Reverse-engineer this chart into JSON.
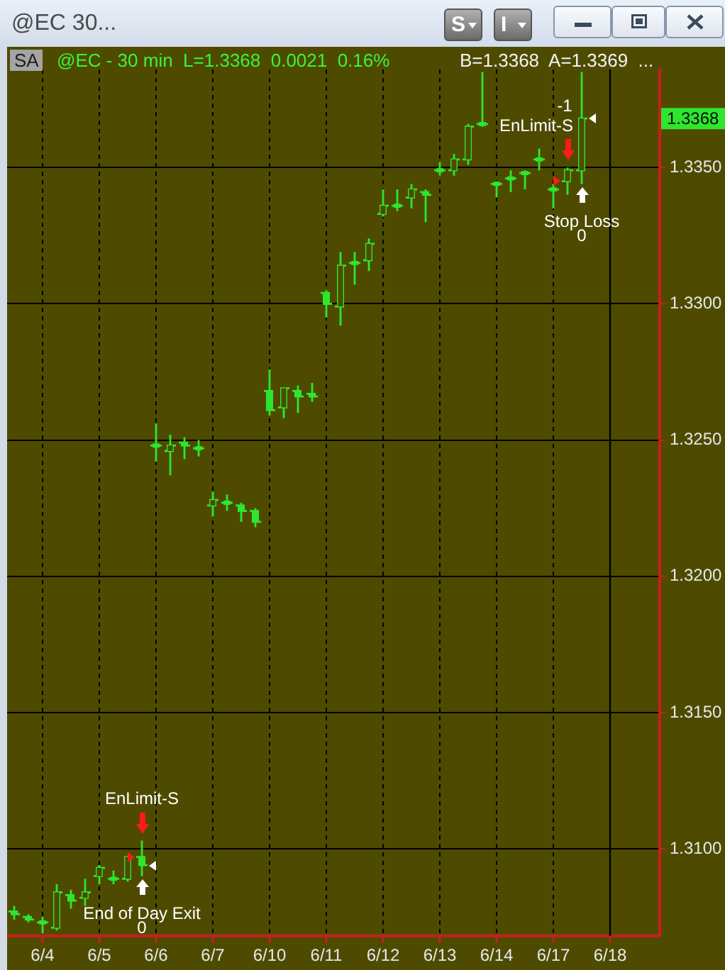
{
  "chart_data": {
    "type": "candlestick",
    "title": "@EC 30...",
    "subtitle": "@EC - 30 min  L=1.3368  0.0021  0.16%",
    "categories": [
      null,
      null,
      "6/4",
      null,
      null,
      null,
      "6/5",
      null,
      null,
      null,
      "6/6",
      null,
      null,
      null,
      "6/7",
      null,
      null,
      null,
      "6/10",
      null,
      null,
      null,
      "6/11",
      null,
      null,
      null,
      "6/12",
      null,
      null,
      null,
      "6/13",
      null,
      null,
      null,
      "6/14",
      null,
      null,
      null,
      "6/17",
      null,
      null,
      null,
      "6/18",
      null,
      null,
      null
    ],
    "ohlc": [
      [
        1.3077,
        1.3079,
        1.3074,
        1.3076
      ],
      [
        1.3075,
        1.3076,
        1.3073,
        1.3074
      ],
      [
        1.3073,
        1.3075,
        1.3069,
        1.3073
      ],
      [
        1.3071,
        1.3087,
        1.307,
        1.3084
      ],
      [
        1.3083,
        1.3085,
        1.3078,
        1.3081
      ],
      [
        1.3082,
        1.3089,
        1.3079,
        1.3084
      ],
      [
        1.309,
        1.3094,
        1.3087,
        1.3093
      ],
      [
        1.3089,
        1.3092,
        1.3087,
        1.3089
      ],
      [
        1.3089,
        1.3097,
        1.3088,
        1.3097
      ],
      [
        1.3097,
        1.3103,
        1.309,
        1.3094
      ],
      [
        1.3248,
        1.3256,
        1.3242,
        1.3248
      ],
      [
        1.3246,
        1.3252,
        1.3237,
        1.3248
      ],
      [
        1.3249,
        1.3251,
        1.3243,
        1.3248
      ],
      [
        1.3247,
        1.325,
        1.3244,
        1.3247
      ],
      [
        1.3226,
        1.3231,
        1.3222,
        1.3228
      ],
      [
        1.3227,
        1.323,
        1.3224,
        1.3227
      ],
      [
        1.3226,
        1.3227,
        1.322,
        1.3224
      ],
      [
        1.3224,
        1.3225,
        1.3218,
        1.322
      ],
      [
        1.3268,
        1.3276,
        1.3259,
        1.3261
      ],
      [
        1.3262,
        1.3269,
        1.3258,
        1.3269
      ],
      [
        1.3268,
        1.327,
        1.326,
        1.3266
      ],
      [
        1.3267,
        1.3271,
        1.3264,
        1.3266
      ],
      [
        1.3304,
        1.3305,
        1.3295,
        1.33
      ],
      [
        1.3299,
        1.3319,
        1.3292,
        1.3314
      ],
      [
        1.3315,
        1.3319,
        1.3307,
        1.3315
      ],
      [
        1.3316,
        1.3324,
        1.3312,
        1.3322
      ],
      [
        1.3333,
        1.3342,
        1.3332,
        1.3336
      ],
      [
        1.3336,
        1.3342,
        1.3334,
        1.3336
      ],
      [
        1.3339,
        1.3344,
        1.3335,
        1.3342
      ],
      [
        1.3341,
        1.3342,
        1.333,
        1.334
      ],
      [
        1.3349,
        1.3352,
        1.3347,
        1.3349
      ],
      [
        1.3349,
        1.3355,
        1.3347,
        1.3353
      ],
      [
        1.3353,
        1.3366,
        1.3351,
        1.3365
      ],
      [
        1.3366,
        1.3385,
        1.3365,
        1.3366
      ],
      [
        1.3344,
        1.3345,
        1.3339,
        1.3344
      ],
      [
        1.3346,
        1.3349,
        1.3341,
        1.3346
      ],
      [
        1.3348,
        1.3349,
        1.3342,
        1.3348
      ],
      [
        1.3353,
        1.3357,
        1.3349,
        1.3353
      ],
      [
        1.3342,
        1.3344,
        1.3335,
        1.3342
      ],
      [
        1.3345,
        1.335,
        1.334,
        1.3349
      ],
      [
        1.3349,
        1.3385,
        1.3344,
        1.3368
      ],
      null,
      null,
      null,
      null,
      null
    ],
    "color": "#2ee62e",
    "ylim": [
      1.3068,
      1.3386
    ],
    "yticks": [
      {
        "value": 1.31,
        "label": "1.3100"
      },
      {
        "value": 1.315,
        "label": "1.3150"
      },
      {
        "value": 1.32,
        "label": "1.3200"
      },
      {
        "value": 1.325,
        "label": "1.3250"
      },
      {
        "value": 1.33,
        "label": "1.3300"
      },
      {
        "value": 1.335,
        "label": "1.3350"
      }
    ],
    "grid": true,
    "ref_lines": [
      {
        "axis": "x",
        "value": "6/18",
        "color": "#000000"
      }
    ],
    "annotations": [
      "S",
      "I",
      "SA",
      "B=1.3368  A=1.3369  ...",
      "1.3368",
      {
        "text": "EnLimit-S",
        "y": 1.3103
      },
      {
        "text": "End of Day Exit\n0",
        "y": 1.309
      },
      {
        "text": "-1\nEnLimit-S",
        "y": 1.335
      },
      {
        "text": "Stop Loss\n0",
        "y": 1.3344
      }
    ]
  }
}
